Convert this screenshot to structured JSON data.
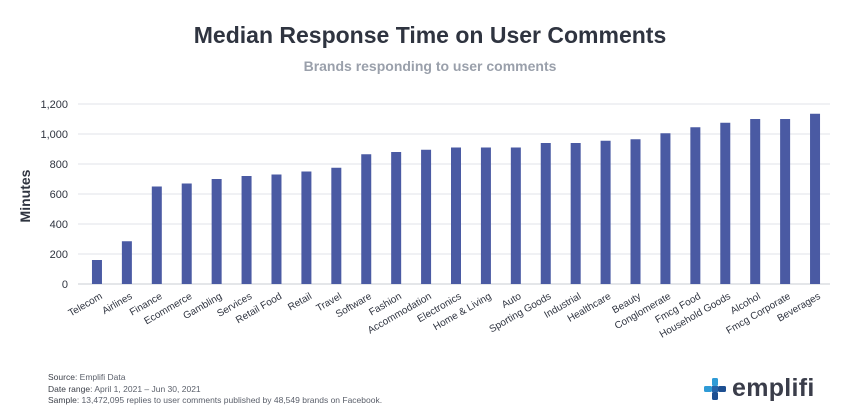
{
  "header": {
    "title": "Median Response Time on User Comments",
    "subtitle": "Brands responding to user comments"
  },
  "chart_data": {
    "type": "bar",
    "title": "Median Response Time on User Comments",
    "subtitle": "Brands responding to user comments",
    "xlabel": "",
    "ylabel": "Minutes",
    "ylim": [
      0,
      1200
    ],
    "yticks": [
      0,
      200,
      400,
      600,
      800,
      1000,
      1200
    ],
    "ytick_labels": [
      "0",
      "200",
      "400",
      "600",
      "800",
      "1,000",
      "1,200"
    ],
    "grid": true,
    "bar_color": "#4a5aa3",
    "categories": [
      "Telecom",
      "Airlines",
      "Finance",
      "Ecommerce",
      "Gambling",
      "Services",
      "Retail Food",
      "Retail",
      "Travel",
      "Software",
      "Fashion",
      "Accommodation",
      "Electronics",
      "Home & Living",
      "Auto",
      "Sporting Goods",
      "Industrial",
      "Healthcare",
      "Beauty",
      "Conglomerate",
      "Fmcg Food",
      "Household Goods",
      "Alcohol",
      "Fmcg Corporate",
      "Beverages"
    ],
    "values": [
      160,
      285,
      650,
      670,
      700,
      720,
      730,
      750,
      775,
      865,
      880,
      895,
      910,
      910,
      910,
      940,
      940,
      955,
      965,
      1005,
      1045,
      1075,
      1100,
      1100,
      1135
    ]
  },
  "footer": {
    "source_label": "Source",
    "source_text": ": Emplifi Data",
    "date_label": "Date range",
    "date_text": ": April 1, 2021 – Jun 30, 2021",
    "sample_label": "Sample",
    "sample_text": ": 13,472,095 replies to user comments published by 48,549 brands on Facebook."
  },
  "logo": {
    "text": "emplifi",
    "icon": "emplifi-logo-icon"
  },
  "colors": {
    "bar": "#4a5aa3",
    "title": "#2f3440",
    "subtitle": "#9aa0ab",
    "grid": "#e1e3e8"
  }
}
